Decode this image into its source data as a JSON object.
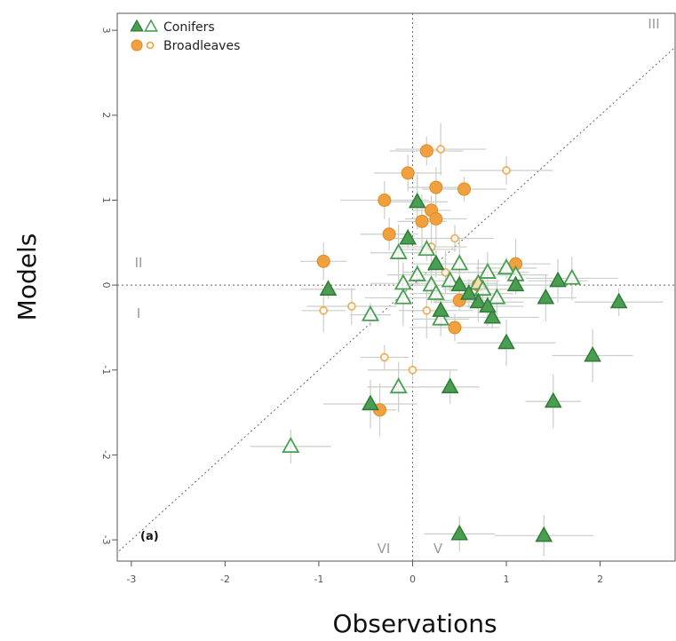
{
  "chart_data": {
    "type": "scatter",
    "xlabel": "Observations",
    "ylabel": "Models",
    "xlim": [
      -3.15,
      2.8
    ],
    "ylim": [
      -3.25,
      3.2
    ],
    "xticks": [
      "-3",
      "-2",
      "-1",
      "0",
      "1",
      "2"
    ],
    "yticks": [
      "-3",
      "-2",
      "-1",
      "0",
      "1",
      "2",
      "3"
    ],
    "panel_label": "(a)",
    "quadrant_labels": [
      "I",
      "II",
      "III",
      "V",
      "VI"
    ],
    "reference_lines": {
      "identity": true,
      "x_zero": true,
      "y_zero": true
    },
    "legend": {
      "placement": "top-left",
      "entries": [
        "Conifers",
        "Broadleaves"
      ]
    },
    "colors": {
      "conifer_fill": "#4a9e52",
      "conifer_stroke": "#2f7a37",
      "broadleaf_fill": "#f0a03c",
      "broadleaf_stroke": "#e0892a",
      "error_bar": "#c9cfc9"
    },
    "series": [
      {
        "name": "Conifers",
        "marker": "triangle-filled",
        "points": [
          {
            "x": 0.05,
            "y": 0.98
          },
          {
            "x": -0.05,
            "y": 0.55
          },
          {
            "x": -0.9,
            "y": -0.05
          },
          {
            "x": 0.25,
            "y": 0.25
          },
          {
            "x": 0.5,
            "y": 0.0
          },
          {
            "x": 0.7,
            "y": -0.2
          },
          {
            "x": 0.85,
            "y": -0.38
          },
          {
            "x": 1.0,
            "y": -0.68
          },
          {
            "x": 1.1,
            "y": 0.0
          },
          {
            "x": 1.42,
            "y": -0.15
          },
          {
            "x": 1.55,
            "y": 0.05
          },
          {
            "x": 1.92,
            "y": -0.83
          },
          {
            "x": 2.2,
            "y": -0.2
          },
          {
            "x": 1.5,
            "y": -1.37
          },
          {
            "x": 0.4,
            "y": -1.2
          },
          {
            "x": -0.45,
            "y": -1.4
          },
          {
            "x": 0.5,
            "y": -2.93
          },
          {
            "x": 1.4,
            "y": -2.95
          },
          {
            "x": 0.3,
            "y": -0.3
          },
          {
            "x": 0.8,
            "y": -0.25
          },
          {
            "x": 0.6,
            "y": -0.1
          }
        ]
      },
      {
        "name": "Conifers",
        "marker": "triangle-open",
        "points": [
          {
            "x": -0.15,
            "y": 0.38
          },
          {
            "x": 0.15,
            "y": 0.42
          },
          {
            "x": -0.45,
            "y": -0.35
          },
          {
            "x": -0.15,
            "y": -1.2
          },
          {
            "x": -1.3,
            "y": -1.9
          },
          {
            "x": 1.0,
            "y": 0.2
          },
          {
            "x": 1.7,
            "y": 0.08
          },
          {
            "x": 0.8,
            "y": 0.15
          },
          {
            "x": 0.05,
            "y": 0.12
          },
          {
            "x": -0.1,
            "y": 0.02
          },
          {
            "x": 0.3,
            "y": -0.4
          },
          {
            "x": 0.7,
            "y": 0.02
          },
          {
            "x": 0.5,
            "y": 0.25
          },
          {
            "x": 0.2,
            "y": 0.0
          },
          {
            "x": 1.1,
            "y": 0.12
          },
          {
            "x": -0.1,
            "y": -0.15
          },
          {
            "x": 0.25,
            "y": -0.1
          },
          {
            "x": 0.75,
            "y": -0.05
          },
          {
            "x": 0.9,
            "y": -0.15
          },
          {
            "x": 0.4,
            "y": 0.05
          }
        ]
      },
      {
        "name": "Broadleaves",
        "marker": "circle-filled",
        "points": [
          {
            "x": 0.15,
            "y": 1.58
          },
          {
            "x": -0.05,
            "y": 1.32
          },
          {
            "x": 0.25,
            "y": 1.15
          },
          {
            "x": 0.55,
            "y": 1.13
          },
          {
            "x": -0.3,
            "y": 1.0
          },
          {
            "x": 0.2,
            "y": 0.88
          },
          {
            "x": 0.25,
            "y": 0.78
          },
          {
            "x": 0.1,
            "y": 0.75
          },
          {
            "x": -0.25,
            "y": 0.6
          },
          {
            "x": -0.95,
            "y": 0.28
          },
          {
            "x": 0.45,
            "y": -0.5
          },
          {
            "x": -0.35,
            "y": -1.47
          },
          {
            "x": 0.5,
            "y": -0.18
          },
          {
            "x": 1.1,
            "y": 0.25
          },
          {
            "x": 0.7,
            "y": 0.0
          }
        ]
      },
      {
        "name": "Broadleaves",
        "marker": "circle-open",
        "points": [
          {
            "x": 0.3,
            "y": 1.6
          },
          {
            "x": 1.0,
            "y": 1.35
          },
          {
            "x": 0.45,
            "y": 0.55
          },
          {
            "x": 0.2,
            "y": 0.45
          },
          {
            "x": -0.65,
            "y": -0.25
          },
          {
            "x": -0.3,
            "y": -0.85
          },
          {
            "x": 0.0,
            "y": -1.0
          },
          {
            "x": -0.95,
            "y": -0.3
          },
          {
            "x": 0.35,
            "y": 0.15
          },
          {
            "x": 0.15,
            "y": -0.3
          }
        ]
      }
    ]
  }
}
